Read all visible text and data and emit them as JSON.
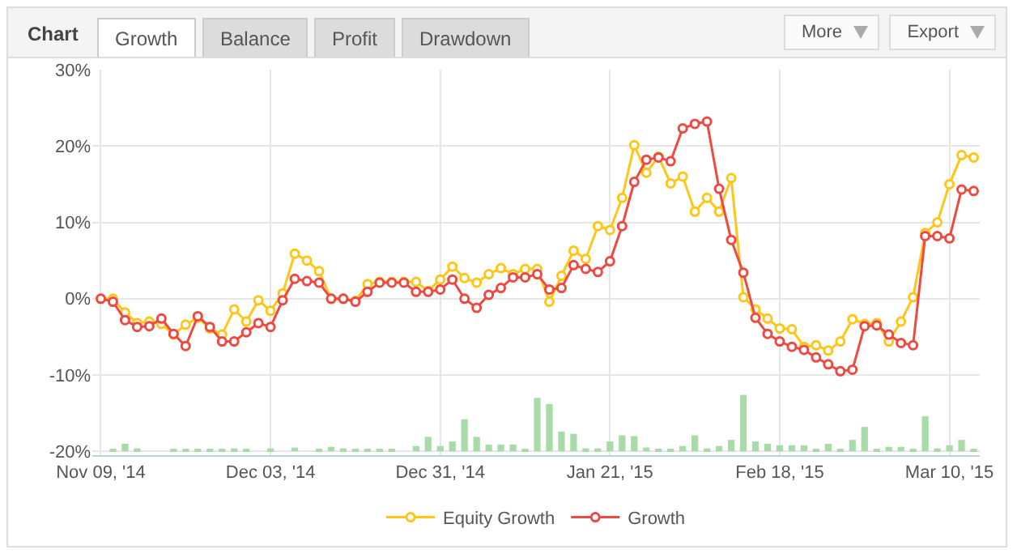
{
  "chart_data": {
    "type": "line",
    "title": "Chart",
    "annotations": [
      "Growth",
      "Balance",
      "Profit",
      "Drawdown",
      "More",
      "Export"
    ],
    "categories": [
      "Nov 09, '14",
      null,
      null,
      null,
      null,
      null,
      null,
      null,
      null,
      null,
      null,
      null,
      null,
      null,
      "Dec 03, '14",
      null,
      null,
      null,
      null,
      null,
      null,
      null,
      null,
      null,
      null,
      null,
      null,
      null,
      "Dec 31, '14",
      null,
      null,
      null,
      null,
      null,
      null,
      null,
      null,
      null,
      null,
      null,
      null,
      null,
      "Jan 21, '15",
      null,
      null,
      null,
      null,
      null,
      null,
      null,
      null,
      null,
      null,
      null,
      null,
      null,
      "Feb 18, '15",
      null,
      null,
      null,
      null,
      null,
      null,
      null,
      null,
      null,
      null,
      null,
      null,
      null,
      "Mar 10, '15",
      null,
      null
    ],
    "series": [
      {
        "type": "bar",
        "color": "#a8dba8",
        "values": [
          null,
          0.2,
          1.0,
          0.4,
          null,
          null,
          0.2,
          0.2,
          0.2,
          0.2,
          0.2,
          0.4,
          0.2,
          null,
          0.4,
          null,
          0.5,
          null,
          0.2,
          0.6,
          0.4,
          0.2,
          0.2,
          0.2,
          0.2,
          null,
          0.7,
          1.9,
          0.7,
          1.3,
          4.2,
          1.9,
          0.9,
          0.9,
          0.9,
          0.2,
          7.0,
          6.2,
          2.6,
          2.3,
          0.4,
          0.4,
          1.3,
          2.1,
          2.0,
          0.5,
          0.2,
          0.2,
          0.7,
          2.1,
          0.4,
          0.7,
          1.5,
          7.4,
          1.3,
          1.0,
          0.8,
          0.8,
          0.8,
          0.2,
          1.0,
          0.2,
          1.5,
          3.2,
          0.2,
          0.6,
          0.6,
          0.2,
          4.6,
          0.4,
          0.8,
          1.5,
          0.2
        ],
        "base": [
          null,
          -20,
          -20,
          -20,
          null,
          null,
          -20,
          -20,
          -20,
          -20,
          -20,
          -20,
          -20,
          null,
          -20,
          null,
          -20,
          null,
          -20,
          -20,
          -20,
          -20,
          -20,
          -20,
          -20,
          null,
          -20,
          -20,
          -20,
          -20,
          -20,
          -20,
          -20,
          -20,
          -20,
          -20,
          -20,
          -20,
          -20,
          -20,
          -20,
          -20,
          -20,
          -20,
          -20,
          -20,
          -20,
          -20,
          -20,
          -20,
          -20,
          -20,
          -20,
          -20,
          -20,
          -20,
          -20,
          -20,
          -20,
          -20,
          -20,
          -20,
          -20,
          -20,
          -20,
          -20,
          -20,
          -20,
          -20,
          -20,
          -20,
          -20,
          -20
        ]
      },
      {
        "name": "Equity Growth",
        "color": "#ffc61a",
        "values": [
          0,
          0,
          -1.8,
          -3.2,
          -3.0,
          -3.3,
          -4.7,
          -3.4,
          -2.5,
          -3.9,
          -4.7,
          -1.4,
          -3.0,
          -0.2,
          -1.6,
          0.7,
          5.9,
          5.0,
          3.6,
          0,
          0,
          -0.3,
          1.9,
          2.2,
          2.2,
          2.2,
          2.2,
          1.0,
          2.5,
          4.2,
          2.7,
          2.1,
          3.2,
          4.0,
          3.2,
          3.9,
          3.9,
          -0.4,
          3.0,
          6.3,
          5.2,
          9.5,
          9.0,
          13.2,
          20.1,
          16.5,
          18.6,
          15.1,
          16.0,
          11.4,
          13.2,
          11.4,
          15.8,
          0.2,
          -1.4,
          -2.6,
          -3.9,
          -4.0,
          -6.3,
          -6.1,
          -6.8,
          -5.6,
          -2.7,
          -3.3,
          -3.2,
          -5.6,
          -3.0,
          0.2,
          8.6,
          10.0,
          15.0,
          18.8,
          18.5
        ]
      },
      {
        "name": "Growth",
        "color": "#ec4a42",
        "values": [
          0,
          -0.4,
          -2.8,
          -3.7,
          -3.6,
          -2.6,
          -4.6,
          -6.2,
          -2.3,
          -3.7,
          -5.6,
          -5.6,
          -4.4,
          -3.2,
          -3.7,
          -0.2,
          2.6,
          2.3,
          2.1,
          0,
          0,
          -0.4,
          0.9,
          2.1,
          2.1,
          2.1,
          0.9,
          0.9,
          1.2,
          2.5,
          0,
          -1.2,
          0.5,
          1.4,
          2.8,
          2.8,
          3.2,
          1.2,
          1.4,
          4.4,
          3.9,
          3.5,
          4.9,
          9.5,
          15.3,
          18.2,
          18.5,
          18.0,
          22.3,
          22.9,
          23.2,
          14.4,
          7.7,
          3.4,
          -2.5,
          -4.6,
          -5.6,
          -6.3,
          -6.7,
          -7.7,
          -8.6,
          -9.5,
          -9.3,
          -3.6,
          -3.5,
          -4.7,
          -5.8,
          -6.1,
          8.2,
          8.2,
          7.9,
          14.3,
          14.1
        ]
      }
    ],
    "ylim": [
      -20.5,
      30
    ],
    "yticks": [
      {
        "value": -20,
        "label": "-20%"
      },
      {
        "value": -10,
        "label": "-10%"
      },
      {
        "value": 0,
        "label": "0%"
      },
      {
        "value": 10,
        "label": "10%"
      },
      {
        "value": 20,
        "label": "20%"
      },
      {
        "value": 30,
        "label": "30%"
      }
    ],
    "grid": true,
    "legend": "bottom",
    "marker": "circle",
    "line_style": "solid"
  }
}
